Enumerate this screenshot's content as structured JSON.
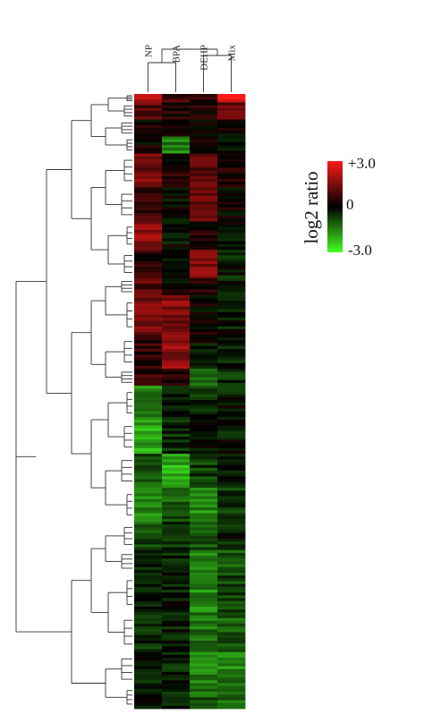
{
  "chart_data": {
    "type": "heatmap",
    "title": "",
    "columns": [
      "NP",
      "BPA",
      "DEHP",
      "Mix"
    ],
    "value_range": [
      -3.0,
      3.0
    ],
    "color_scale": {
      "low": "#44ff22",
      "mid": "#000000",
      "high": "#ff1a1a"
    },
    "legend": {
      "title": "log2 ratio",
      "ticks": [
        "+3.0",
        "0",
        "-3.0"
      ],
      "placement": "right"
    },
    "row_dendrogram": true,
    "column_dendrogram": true,
    "row_blocks": [
      {
        "rows": 3,
        "values": [
          2.2,
          0.6,
          0.4,
          2.8
        ]
      },
      {
        "rows": 6,
        "values": [
          1.0,
          0.4,
          0.3,
          1.2
        ]
      },
      {
        "rows": 6,
        "values": [
          0.2,
          0.3,
          0.1,
          0.1
        ]
      },
      {
        "rows": 6,
        "values": [
          0.1,
          -1.4,
          0.2,
          -0.1
        ]
      },
      {
        "rows": 12,
        "values": [
          1.4,
          0.3,
          1.0,
          0.2
        ]
      },
      {
        "rows": 12,
        "values": [
          0.7,
          -0.1,
          1.2,
          0.1
        ]
      },
      {
        "rows": 10,
        "values": [
          1.7,
          -0.1,
          0.4,
          0.0
        ]
      },
      {
        "rows": 10,
        "values": [
          0.4,
          -0.2,
          1.5,
          -0.3
        ]
      },
      {
        "rows": 6,
        "values": [
          1.0,
          0.2,
          0.3,
          -0.2
        ]
      },
      {
        "rows": 14,
        "values": [
          1.4,
          1.5,
          0.1,
          -0.3
        ]
      },
      {
        "rows": 12,
        "values": [
          0.5,
          1.6,
          -0.2,
          -0.4
        ]
      },
      {
        "rows": 6,
        "values": [
          0.6,
          0.6,
          -1.1,
          -0.5
        ]
      },
      {
        "rows": 12,
        "values": [
          -1.6,
          -0.2,
          -0.4,
          -0.3
        ]
      },
      {
        "rows": 12,
        "values": [
          -1.9,
          -0.4,
          0.0,
          -0.2
        ]
      },
      {
        "rows": 12,
        "values": [
          -0.9,
          -2.0,
          -0.7,
          -0.2
        ]
      },
      {
        "rows": 12,
        "values": [
          -1.5,
          -1.0,
          -1.6,
          -0.7
        ]
      },
      {
        "rows": 10,
        "values": [
          -0.8,
          -0.5,
          -0.9,
          -0.3
        ]
      },
      {
        "rows": 8,
        "values": [
          -0.2,
          -0.3,
          -1.5,
          -0.9
        ]
      },
      {
        "rows": 14,
        "values": [
          -0.5,
          -0.2,
          -1.6,
          -0.8
        ]
      },
      {
        "rows": 14,
        "values": [
          -0.4,
          -0.3,
          -1.3,
          -1.1
        ]
      },
      {
        "rows": 12,
        "values": [
          -0.3,
          -0.4,
          -1.4,
          -1.5
        ]
      },
      {
        "rows": 8,
        "values": [
          -0.2,
          -0.5,
          -1.1,
          -1.3
        ]
      }
    ]
  }
}
